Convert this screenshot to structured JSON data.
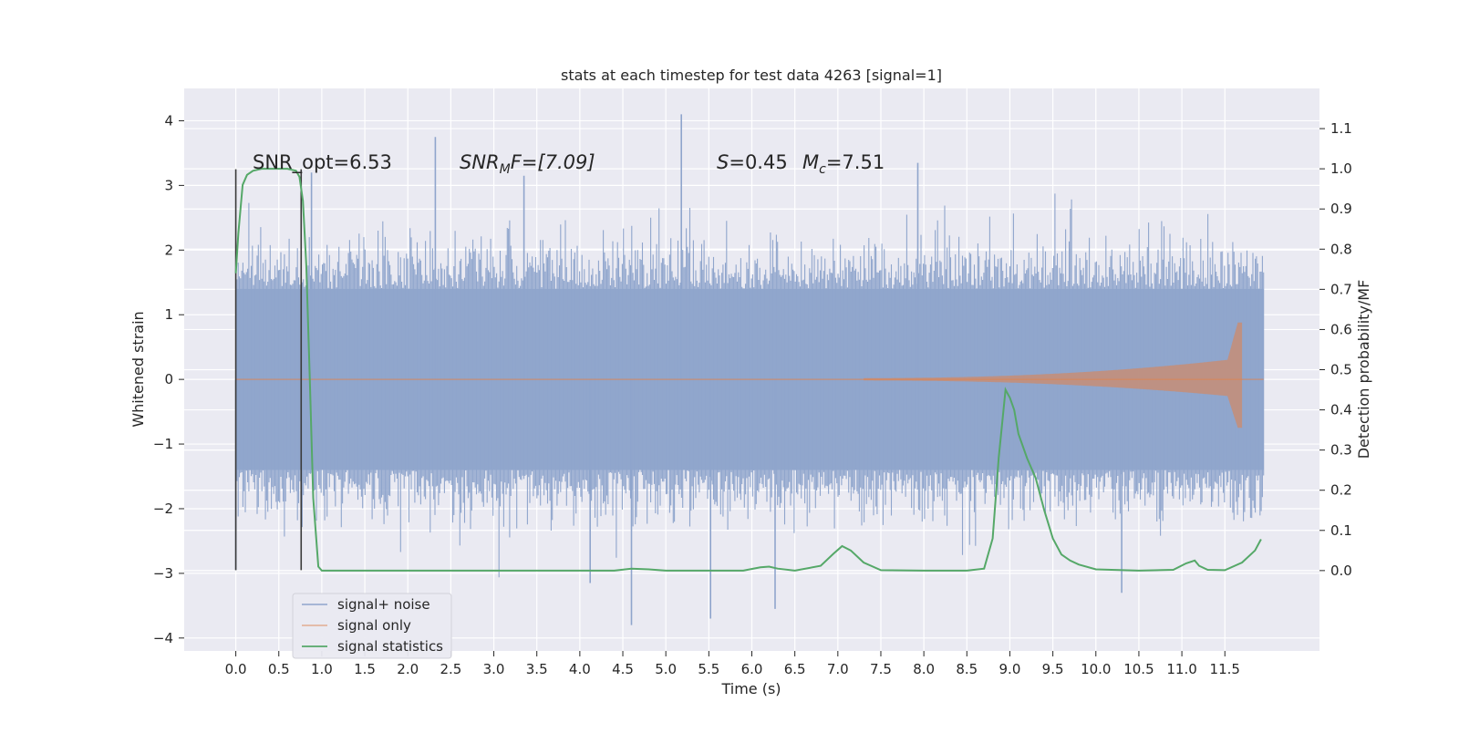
{
  "chart_data": {
    "type": "line",
    "title": "stats at each timestep for test data 4263 [signal=1]",
    "xlabel": "Time (s)",
    "ylabel": "Whitened strain",
    "ylabel_right": "Detection probability/MF",
    "xlim": [
      -0.6,
      12.6
    ],
    "ylim": [
      -4.2,
      4.5
    ],
    "ylim_right": [
      -0.2,
      1.2
    ],
    "xticks": [
      "0.0",
      "0.5",
      "1.0",
      "1.5",
      "2.0",
      "2.5",
      "3.0",
      "3.5",
      "4.0",
      "4.5",
      "5.0",
      "5.5",
      "6.0",
      "6.5",
      "7.0",
      "7.5",
      "8.0",
      "8.5",
      "9.0",
      "9.5",
      "10.0",
      "10.5",
      "11.0",
      "11.5"
    ],
    "yticks_left": [
      "−4",
      "−3",
      "−2",
      "−1",
      "0",
      "1",
      "2",
      "3",
      "4"
    ],
    "yticks_right": [
      "0.0",
      "0.1",
      "0.2",
      "0.3",
      "0.4",
      "0.5",
      "0.6",
      "0.7",
      "0.8",
      "0.9",
      "1.0",
      "1.1"
    ],
    "grid": true,
    "legend_position": "lower-left",
    "colors": {
      "background": "#eaeaf2",
      "grid": "#ffffff",
      "signal_noise": "#8fa5cc",
      "signal_only": "#dd8452",
      "signal_statistics": "#55a868",
      "marker": "#3a3a3a"
    },
    "annotations": {
      "snr_opt": "SNR_opt=6.53",
      "snr_mf_prefix": "SNR",
      "snr_mf_sub": "M",
      "snr_mf_suffix": "F=[7.09]",
      "s_label": "S",
      "s_value": "=0.45",
      "mc_label": "M",
      "mc_sub": "c",
      "mc_value": "=7.51"
    },
    "vertical_markers_s": [
      0.0,
      0.76
    ],
    "series": [
      {
        "name": "signal+ noise",
        "axis": "left",
        "description_envelope": "dense whitened noise, typical amplitude ±1.4, spikes to about 4.1 and −3.8",
        "t_start": 0.0,
        "t_end": 11.95,
        "band": 1.4,
        "spike_peaks": [
          [
            2.32,
            3.75
          ],
          [
            5.18,
            4.1
          ],
          [
            7.93,
            3.35
          ],
          [
            3.35,
            3.15
          ],
          [
            0.88,
            3.2
          ],
          [
            4.6,
            -3.8
          ],
          [
            5.52,
            -3.7
          ],
          [
            6.27,
            -3.55
          ],
          [
            10.3,
            -3.3
          ],
          [
            4.12,
            -3.15
          ],
          [
            0.0,
            -2.95
          ]
        ]
      },
      {
        "name": "signal only",
        "axis": "left",
        "chirp_start_s": 7.3,
        "chirp_peak_s": 11.65,
        "chirp_peak_amplitude": 0.88,
        "chirp_end_s": 11.7
      },
      {
        "name": "signal statistics",
        "axis": "right",
        "x": [
          0.0,
          0.03,
          0.08,
          0.13,
          0.2,
          0.3,
          0.4,
          0.5,
          0.6,
          0.7,
          0.74,
          0.78,
          0.82,
          0.86,
          0.9,
          0.96,
          1.0,
          1.2,
          2.0,
          3.0,
          4.0,
          4.4,
          4.6,
          4.8,
          5.0,
          5.5,
          5.9,
          6.1,
          6.2,
          6.3,
          6.5,
          6.8,
          6.95,
          7.05,
          7.15,
          7.3,
          7.5,
          8.0,
          8.5,
          8.7,
          8.8,
          8.87,
          8.95,
          9.0,
          9.05,
          9.1,
          9.2,
          9.3,
          9.4,
          9.5,
          9.6,
          9.7,
          9.8,
          10.0,
          10.5,
          10.9,
          11.05,
          11.15,
          11.2,
          11.3,
          11.5,
          11.7,
          11.85,
          11.92
        ],
        "values": [
          0.74,
          0.84,
          0.96,
          0.985,
          0.995,
          1.0,
          1.0,
          1.0,
          1.0,
          0.995,
          0.98,
          0.92,
          0.76,
          0.48,
          0.18,
          0.01,
          0.0,
          0.0,
          0.0,
          0.0,
          0.0,
          0.0,
          0.005,
          0.003,
          0.0,
          0.0,
          0.0,
          0.008,
          0.01,
          0.005,
          0.0,
          0.012,
          0.042,
          0.061,
          0.05,
          0.02,
          0.001,
          0.0,
          0.0,
          0.005,
          0.08,
          0.28,
          0.45,
          0.43,
          0.4,
          0.34,
          0.28,
          0.23,
          0.15,
          0.08,
          0.04,
          0.025,
          0.015,
          0.003,
          0.0,
          0.002,
          0.018,
          0.025,
          0.012,
          0.002,
          0.001,
          0.02,
          0.05,
          0.078
        ]
      }
    ],
    "legend": [
      {
        "label": "signal+ noise"
      },
      {
        "label": "signal only"
      },
      {
        "label": "signal statistics"
      }
    ]
  }
}
